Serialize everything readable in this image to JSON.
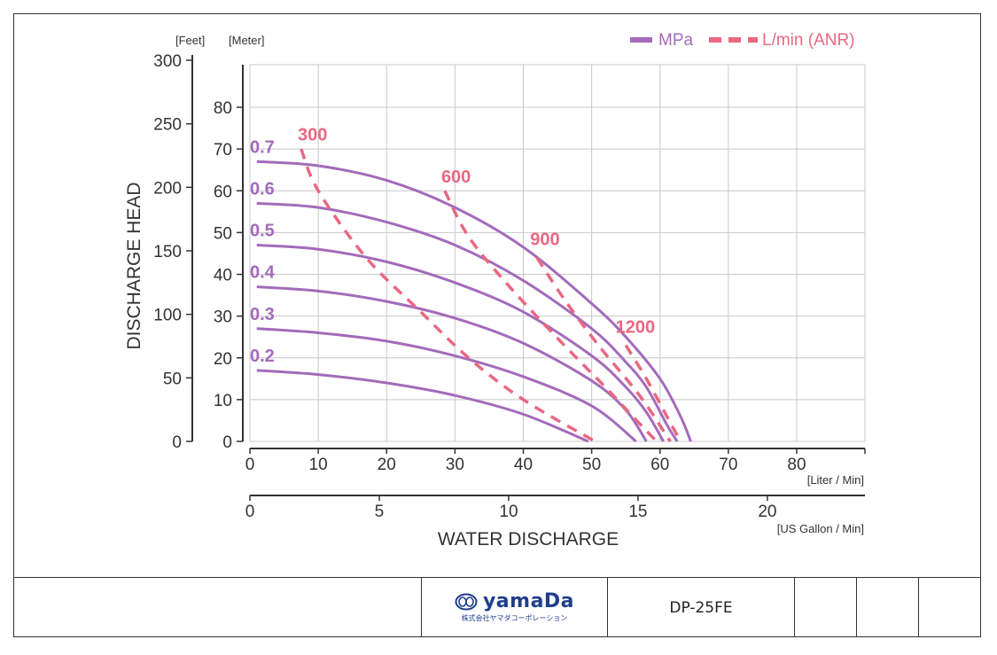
{
  "colors": {
    "mpa": "#a36bbb",
    "flow": "#e96882",
    "grid": "#c8c8c8",
    "axis": "#333333"
  },
  "legend": {
    "mpa_label": "MPa",
    "flow_label": "L/min (ANR)"
  },
  "footer": {
    "brand_name": "yamaDa",
    "brand_sub": "株式会社ヤマダコーポレーション",
    "model": "DP-25FE"
  },
  "chart_data": {
    "type": "line",
    "ylabel": "DISCHARGE HEAD",
    "xlabel": "WATER DISCHARGE",
    "y_unit_meter": "[Meter]",
    "y_unit_feet": "[Feet]",
    "x_unit_liter": "[Liter / Min]",
    "x_unit_gallon": "[US Gallon / Min]",
    "xlim": [
      0,
      90
    ],
    "ylim": [
      0,
      90
    ],
    "x_ticks": [
      0,
      10,
      20,
      30,
      40,
      50,
      60,
      70,
      80
    ],
    "y_ticks_meter": [
      0,
      10,
      20,
      30,
      40,
      50,
      60,
      70,
      80
    ],
    "y_ticks_feet": [
      0,
      50,
      100,
      150,
      200,
      250,
      300
    ],
    "x_ticks_gallon": [
      0,
      5,
      10,
      15,
      20
    ],
    "grid": true,
    "legend_position": "top-right",
    "series": [
      {
        "name": "0.7",
        "group": "MPa",
        "x": [
          1,
          10,
          20,
          30,
          40,
          50,
          55,
          60,
          63,
          64.5
        ],
        "y": [
          67,
          66,
          62.5,
          56,
          46.5,
          33,
          25,
          15,
          6,
          0
        ]
      },
      {
        "name": "0.6",
        "group": "MPa",
        "x": [
          1,
          10,
          20,
          30,
          40,
          50,
          55,
          58,
          61,
          62.5
        ],
        "y": [
          57,
          56,
          52.5,
          47,
          38.5,
          27,
          19,
          13,
          4,
          0
        ]
      },
      {
        "name": "0.5",
        "group": "MPa",
        "x": [
          1,
          10,
          20,
          30,
          40,
          50,
          55,
          58,
          60.5
        ],
        "y": [
          47,
          46,
          43,
          38,
          31,
          20.5,
          13,
          7,
          0
        ]
      },
      {
        "name": "0.4",
        "group": "MPa",
        "x": [
          1,
          10,
          20,
          30,
          40,
          50,
          55,
          58
        ],
        "y": [
          37,
          36,
          33.5,
          29.5,
          23.5,
          14.5,
          7.5,
          0
        ]
      },
      {
        "name": "0.3",
        "group": "MPa",
        "x": [
          1,
          10,
          20,
          30,
          40,
          50,
          56.5
        ],
        "y": [
          27,
          26,
          24,
          20.5,
          15.5,
          8.5,
          0
        ]
      },
      {
        "name": "0.2",
        "group": "MPa",
        "x": [
          1,
          10,
          20,
          30,
          40,
          49.5
        ],
        "y": [
          17,
          16,
          14,
          11,
          6.5,
          0
        ]
      },
      {
        "name": "300",
        "group": "L/min (ANR)",
        "x": [
          7.5,
          10,
          17,
          25,
          32,
          40,
          50.5
        ],
        "y": [
          70,
          60,
          44,
          31,
          20,
          10,
          0
        ]
      },
      {
        "name": "600",
        "group": "L/min (ANR)",
        "x": [
          28.5,
          32,
          38,
          46,
          52,
          56,
          59.5
        ],
        "y": [
          60,
          49,
          37,
          23,
          13,
          6,
          0
        ]
      },
      {
        "name": "900",
        "group": "L/min (ANR)",
        "x": [
          42,
          46,
          51,
          57,
          61.5
        ],
        "y": [
          44,
          34,
          23,
          11,
          0
        ]
      },
      {
        "name": "1200",
        "group": "L/min (ANR)",
        "x": [
          55,
          58,
          61,
          63
        ],
        "y": [
          23,
          15,
          6,
          0
        ]
      }
    ],
    "curve_labels": [
      "0.7",
      "0.6",
      "0.5",
      "0.4",
      "0.3",
      "0.2"
    ],
    "flow_labels": [
      "300",
      "600",
      "900",
      "1200"
    ]
  }
}
